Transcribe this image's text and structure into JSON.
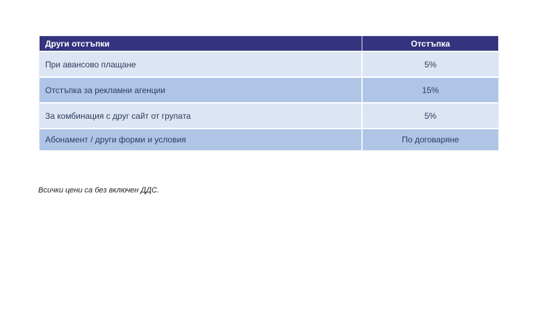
{
  "table": {
    "columns": [
      "Други отстъпки",
      "Отстъпка"
    ],
    "rows": [
      {
        "label": "При авансово плащане",
        "value": "5%"
      },
      {
        "label": "Отстъпка за рекламни агенции",
        "value": "15%"
      },
      {
        "label": "За комбинация с друг сайт от групата",
        "value": "5%"
      },
      {
        "label": "Абонамент / други форми и условия",
        "value": "По договаряне"
      }
    ]
  },
  "footnote": "Всички цени са без включен ДДС.",
  "colors": {
    "header_bg": "#34337f",
    "header_text": "#ffffff",
    "row_dark": "#aec5e6",
    "row_light": "#dce5f3",
    "row_text": "#2f3b5c"
  }
}
